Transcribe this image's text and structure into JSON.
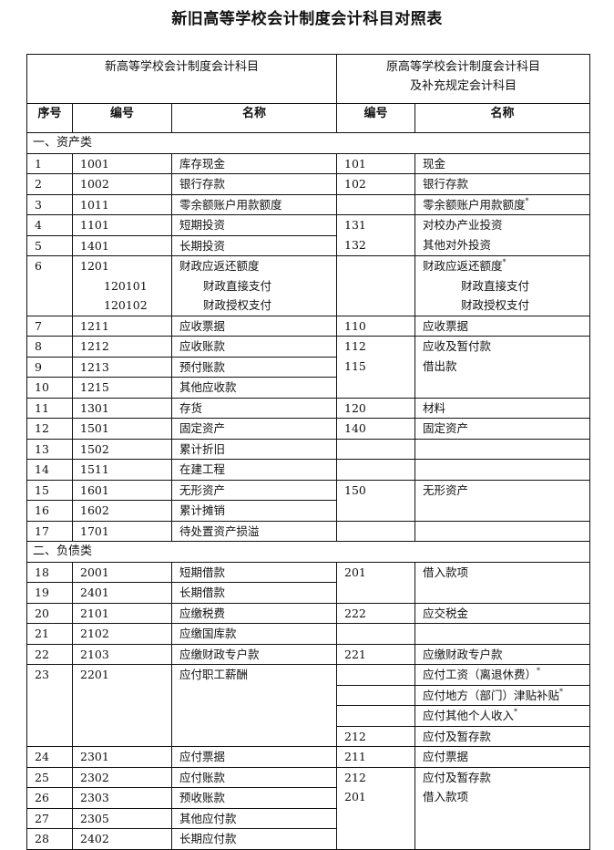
{
  "title": "新旧高等学校会计制度会计科目对照表",
  "header": {
    "new_group": "新高等学校会计制度会计科目",
    "old_group_line1": "原高等学校会计制度会计科目",
    "old_group_line2": "及补充规定会计科目",
    "seq": "序号",
    "code": "编号",
    "name": "名称",
    "old_code": "编号",
    "old_name": "名称"
  },
  "sections": [
    {
      "title": "一、资产类",
      "groups": [
        {
          "left": [
            {
              "seq": "1",
              "code": "1001",
              "name": "库存现金"
            }
          ],
          "right": [
            {
              "code": "101",
              "name": "现金"
            }
          ]
        },
        {
          "left": [
            {
              "seq": "2",
              "code": "1002",
              "name": "银行存款"
            }
          ],
          "right": [
            {
              "code": "102",
              "name": "银行存款"
            }
          ]
        },
        {
          "left": [
            {
              "seq": "3",
              "code": "1011",
              "name": "零余额账户用款额度"
            }
          ],
          "right": [
            {
              "code": "",
              "name": "零余额账户用款额度",
              "mark": "*"
            }
          ]
        },
        {
          "left": [
            {
              "seq": "4",
              "code": "1101",
              "name": "短期投资"
            },
            {
              "seq": "5",
              "code": "1401",
              "name": "长期投资"
            }
          ],
          "right": [
            {
              "code": "131",
              "name": "对校办产业投资"
            },
            {
              "code": "132",
              "name": "其他对外投资"
            }
          ]
        },
        {
          "left": [
            {
              "seq": "6",
              "code": "1201",
              "name": "财政应返还额度",
              "subs": [
                {
                  "code": "120101",
                  "name": "财政直接支付"
                },
                {
                  "code": "120102",
                  "name": "财政授权支付"
                }
              ]
            }
          ],
          "right": [
            {
              "code": "",
              "name": "财政应返还额度",
              "mark": "*",
              "subs": [
                {
                  "code": "",
                  "name": "财政直接支付"
                },
                {
                  "code": "",
                  "name": "财政授权支付"
                }
              ]
            }
          ]
        },
        {
          "left": [
            {
              "seq": "7",
              "code": "1211",
              "name": "应收票据"
            }
          ],
          "right": [
            {
              "code": "110",
              "name": "应收票据"
            }
          ]
        },
        {
          "left": [
            {
              "seq": "8",
              "code": "1212",
              "name": "应收账款"
            },
            {
              "seq": "9",
              "code": "1213",
              "name": "预付账款"
            },
            {
              "seq": "10",
              "code": "1215",
              "name": "其他应收款"
            }
          ],
          "right": [
            {
              "code": "112",
              "name": "应收及暂付款"
            },
            {
              "code": "115",
              "name": "借出款"
            }
          ]
        },
        {
          "left": [
            {
              "seq": "11",
              "code": "1301",
              "name": "存货"
            }
          ],
          "right": [
            {
              "code": "120",
              "name": "材料"
            }
          ]
        },
        {
          "left": [
            {
              "seq": "12",
              "code": "1501",
              "name": "固定资产"
            }
          ],
          "right": [
            {
              "code": "140",
              "name": "固定资产"
            }
          ]
        },
        {
          "left": [
            {
              "seq": "13",
              "code": "1502",
              "name": "累计折旧"
            }
          ],
          "right": []
        },
        {
          "left": [
            {
              "seq": "14",
              "code": "1511",
              "name": "在建工程"
            }
          ],
          "right": []
        },
        {
          "left": [
            {
              "seq": "15",
              "code": "1601",
              "name": "无形资产"
            },
            {
              "seq": "16",
              "code": "1602",
              "name": "累计摊销"
            }
          ],
          "right": [
            {
              "code": "150",
              "name": "无形资产"
            }
          ]
        },
        {
          "left": [
            {
              "seq": "17",
              "code": "1701",
              "name": "待处置资产损溢"
            }
          ],
          "right": []
        }
      ]
    },
    {
      "title": "二、负债类",
      "groups": [
        {
          "left": [
            {
              "seq": "18",
              "code": "2001",
              "name": "短期借款"
            },
            {
              "seq": "19",
              "code": "2401",
              "name": "长期借款"
            }
          ],
          "right": [
            {
              "code": "201",
              "name": "借入款项"
            }
          ]
        },
        {
          "left": [
            {
              "seq": "20",
              "code": "2101",
              "name": "应缴税费"
            }
          ],
          "right": [
            {
              "code": "222",
              "name": "应交税金"
            }
          ]
        },
        {
          "left": [
            {
              "seq": "21",
              "code": "2102",
              "name": "应缴国库款"
            }
          ],
          "right": []
        },
        {
          "left": [
            {
              "seq": "22",
              "code": "2103",
              "name": "应缴财政专户款"
            }
          ],
          "right": [
            {
              "code": "221",
              "name": "应缴财政专户款"
            }
          ]
        },
        {
          "left": [
            {
              "seq": "23",
              "code": "2201",
              "name": "应付职工薪酬"
            }
          ],
          "right": [
            {
              "code": "",
              "name": "应付工资（离退休费）",
              "mark": "*"
            },
            {
              "code": "",
              "name": "应付地方（部门）津贴补贴",
              "mark": "*"
            },
            {
              "code": "",
              "name": "应付其他个人收入",
              "mark": "*"
            },
            {
              "code": "212",
              "name": "应付及暂存款"
            }
          ]
        },
        {
          "left": [
            {
              "seq": "24",
              "code": "2301",
              "name": "应付票据"
            }
          ],
          "right": [
            {
              "code": "211",
              "name": "应付票据"
            }
          ]
        },
        {
          "left": [
            {
              "seq": "25",
              "code": "2302",
              "name": "应付账款"
            },
            {
              "seq": "26",
              "code": "2303",
              "name": "预收账款"
            },
            {
              "seq": "27",
              "code": "2305",
              "name": "其他应付款"
            },
            {
              "seq": "28",
              "code": "2402",
              "name": "长期应付款"
            }
          ],
          "right": [
            {
              "code": "212",
              "name": "应付及暂存款"
            },
            {
              "code": "201",
              "name": "借入款项"
            }
          ]
        }
      ]
    }
  ]
}
